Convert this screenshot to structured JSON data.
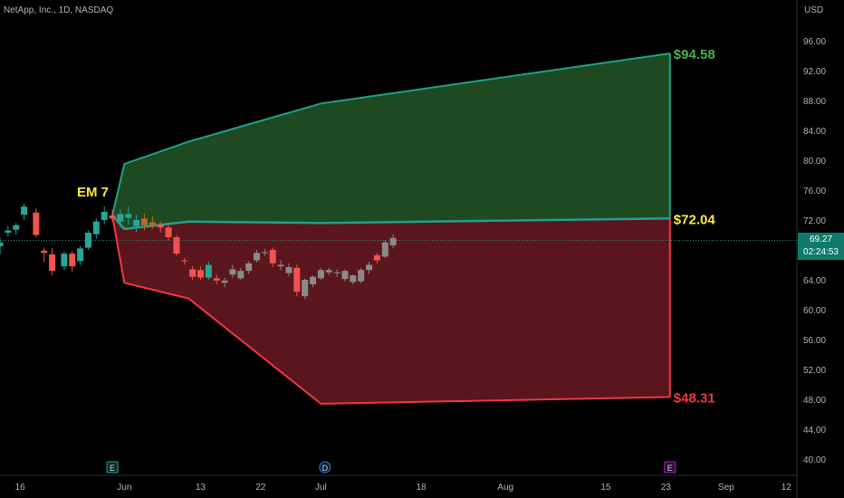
{
  "header": {
    "title": "NetApp, Inc., 1D, NASDAQ"
  },
  "currency": "USD",
  "price_tag": {
    "price": "69.27",
    "countdown": "02:24:53"
  },
  "colors": {
    "up": "#26a69a",
    "down": "#ef5350",
    "green_fill": "#1e4a22",
    "red_fill": "#5a161c",
    "upper_line": "#1fa08c",
    "lower_line": "#f23645",
    "mid_line": "#20a090",
    "label_green": "#4caf50",
    "label_yellow": "#ffeb3b",
    "label_red": "#f23645",
    "grey_candle": "#8a8a8a",
    "orange_candle": "#b8692e"
  },
  "icons": [
    "earnings-marker-icon",
    "dividend-marker-icon",
    "earnings-marker-icon"
  ],
  "chart_data": {
    "type": "candlestick",
    "y_axis": {
      "min": 38,
      "max": 99,
      "ticks": [
        "96.00",
        "92.00",
        "88.00",
        "84.00",
        "80.00",
        "76.00",
        "72.00",
        "68.00",
        "64.00",
        "60.00",
        "56.00",
        "52.00",
        "48.00",
        "44.00",
        "40.00"
      ]
    },
    "x_axis": {
      "tick_labels": [
        {
          "label": "16",
          "x": 5
        },
        {
          "label": "Jun",
          "x": 31
        },
        {
          "label": "13",
          "x": 50
        },
        {
          "label": "22",
          "x": 65
        },
        {
          "label": "Jul",
          "x": 80
        },
        {
          "label": "18",
          "x": 105
        },
        {
          "label": "Aug",
          "x": 126
        },
        {
          "label": "15",
          "x": 151
        },
        {
          "label": "23",
          "x": 166
        },
        {
          "label": "Sep",
          "x": 181
        },
        {
          "label": "12",
          "x": 196
        }
      ],
      "x_range": [
        0,
        200
      ]
    },
    "em_label": "EM 7",
    "range": {
      "upper": [
        [
          28,
          72.6
        ],
        [
          31,
          79.5
        ],
        [
          47,
          82.5
        ],
        [
          80,
          87.6
        ],
        [
          167,
          94.3
        ]
      ],
      "mid": [
        [
          28,
          72.6
        ],
        [
          31,
          70.8
        ],
        [
          47,
          71.8
        ],
        [
          80,
          71.6
        ],
        [
          167,
          72.2
        ]
      ],
      "lower": [
        [
          28,
          72.6
        ],
        [
          31,
          63.6
        ],
        [
          47,
          61.5
        ],
        [
          80,
          47.4
        ],
        [
          167,
          48.3
        ]
      ],
      "end_x": 167
    },
    "levels": [
      {
        "label": "$94.58",
        "value": 94.3,
        "color": "label_green"
      },
      {
        "label": "$72.04",
        "value": 72.2,
        "color": "label_yellow"
      },
      {
        "label": "$48.31",
        "value": 48.3,
        "color": "label_red"
      }
    ],
    "last_price": 69.27,
    "candles": [
      {
        "x": 0,
        "o": 68.5,
        "h": 69.6,
        "l": 67.4,
        "c": 69.0,
        "t": "up"
      },
      {
        "x": 2,
        "o": 70.3,
        "h": 71.2,
        "l": 69.8,
        "c": 70.6,
        "t": "up"
      },
      {
        "x": 4,
        "o": 70.7,
        "h": 71.6,
        "l": 70.0,
        "c": 71.3,
        "t": "up"
      },
      {
        "x": 6,
        "o": 72.7,
        "h": 74.2,
        "l": 72.0,
        "c": 73.8,
        "t": "up"
      },
      {
        "x": 9,
        "o": 73.0,
        "h": 73.6,
        "l": 69.7,
        "c": 70.0,
        "t": "down"
      },
      {
        "x": 11,
        "o": 67.9,
        "h": 68.3,
        "l": 66.4,
        "c": 67.6,
        "t": "down"
      },
      {
        "x": 13,
        "o": 67.4,
        "h": 68.2,
        "l": 64.6,
        "c": 65.2,
        "t": "down"
      },
      {
        "x": 16,
        "o": 65.8,
        "h": 67.8,
        "l": 65.3,
        "c": 67.5,
        "t": "up"
      },
      {
        "x": 18,
        "o": 67.5,
        "h": 67.8,
        "l": 65.0,
        "c": 65.8,
        "t": "down"
      },
      {
        "x": 20,
        "o": 66.5,
        "h": 68.5,
        "l": 66.0,
        "c": 68.2,
        "t": "up"
      },
      {
        "x": 22,
        "o": 68.3,
        "h": 70.6,
        "l": 68.0,
        "c": 70.3,
        "t": "up"
      },
      {
        "x": 24,
        "o": 70.1,
        "h": 72.2,
        "l": 69.5,
        "c": 71.8,
        "t": "up"
      },
      {
        "x": 26,
        "o": 72.0,
        "h": 73.8,
        "l": 71.4,
        "c": 73.1,
        "t": "up"
      },
      {
        "x": 28,
        "o": 72.6,
        "h": 73.4,
        "l": 71.8,
        "c": 72.2,
        "t": "down"
      },
      {
        "x": 30,
        "o": 71.8,
        "h": 73.4,
        "l": 71.0,
        "c": 72.8,
        "t": "up"
      },
      {
        "x": 32,
        "o": 72.3,
        "h": 73.8,
        "l": 71.4,
        "c": 72.8,
        "t": "up"
      },
      {
        "x": 34,
        "o": 71.2,
        "h": 72.7,
        "l": 70.4,
        "c": 72.0,
        "t": "up"
      },
      {
        "x": 36,
        "o": 72.2,
        "h": 72.8,
        "l": 70.6,
        "c": 71.3,
        "t": "orange"
      },
      {
        "x": 38,
        "o": 71.7,
        "h": 72.5,
        "l": 70.8,
        "c": 71.2,
        "t": "orange"
      },
      {
        "x": 40,
        "o": 71.4,
        "h": 71.8,
        "l": 70.3,
        "c": 71.0,
        "t": "down"
      },
      {
        "x": 42,
        "o": 71.0,
        "h": 71.4,
        "l": 69.3,
        "c": 69.7,
        "t": "down"
      },
      {
        "x": 44,
        "o": 69.7,
        "h": 70.0,
        "l": 67.2,
        "c": 67.5,
        "t": "down"
      },
      {
        "x": 46,
        "o": 66.6,
        "h": 66.9,
        "l": 66.0,
        "c": 66.5,
        "t": "down"
      },
      {
        "x": 48,
        "o": 65.4,
        "h": 65.8,
        "l": 64.0,
        "c": 64.4,
        "t": "down"
      },
      {
        "x": 50,
        "o": 65.3,
        "h": 65.8,
        "l": 64.0,
        "c": 64.3,
        "t": "down"
      },
      {
        "x": 52,
        "o": 64.3,
        "h": 66.4,
        "l": 64.0,
        "c": 66.0,
        "t": "up"
      },
      {
        "x": 54,
        "o": 64.2,
        "h": 64.7,
        "l": 63.4,
        "c": 63.9,
        "t": "down"
      },
      {
        "x": 56,
        "o": 63.6,
        "h": 64.3,
        "l": 63.0,
        "c": 63.9,
        "t": "grey"
      },
      {
        "x": 58,
        "o": 64.7,
        "h": 66.0,
        "l": 64.3,
        "c": 65.4,
        "t": "grey"
      },
      {
        "x": 60,
        "o": 64.2,
        "h": 65.6,
        "l": 64.0,
        "c": 65.2,
        "t": "grey"
      },
      {
        "x": 62,
        "o": 65.2,
        "h": 66.5,
        "l": 64.8,
        "c": 66.2,
        "t": "grey"
      },
      {
        "x": 64,
        "o": 66.6,
        "h": 68.0,
        "l": 66.3,
        "c": 67.6,
        "t": "grey"
      },
      {
        "x": 66,
        "o": 67.6,
        "h": 68.1,
        "l": 67.2,
        "c": 67.7,
        "t": "grey"
      },
      {
        "x": 68,
        "o": 68.0,
        "h": 68.3,
        "l": 65.7,
        "c": 66.2,
        "t": "down"
      },
      {
        "x": 70,
        "o": 66.0,
        "h": 66.6,
        "l": 65.3,
        "c": 65.8,
        "t": "grey"
      },
      {
        "x": 72,
        "o": 65.7,
        "h": 66.2,
        "l": 64.5,
        "c": 64.9,
        "t": "grey"
      },
      {
        "x": 74,
        "o": 65.6,
        "h": 66.0,
        "l": 61.8,
        "c": 62.4,
        "t": "down"
      },
      {
        "x": 76,
        "o": 61.8,
        "h": 64.2,
        "l": 61.4,
        "c": 64.0,
        "t": "grey"
      },
      {
        "x": 78,
        "o": 63.4,
        "h": 64.6,
        "l": 63.0,
        "c": 64.4,
        "t": "grey"
      },
      {
        "x": 80,
        "o": 64.2,
        "h": 65.6,
        "l": 64.0,
        "c": 65.3,
        "t": "grey"
      },
      {
        "x": 82,
        "o": 65.0,
        "h": 65.6,
        "l": 64.6,
        "c": 65.3,
        "t": "grey"
      },
      {
        "x": 84,
        "o": 64.9,
        "h": 65.4,
        "l": 64.4,
        "c": 65.0,
        "t": "grey"
      },
      {
        "x": 86,
        "o": 64.1,
        "h": 65.4,
        "l": 63.8,
        "c": 65.2,
        "t": "grey"
      },
      {
        "x": 88,
        "o": 63.7,
        "h": 64.7,
        "l": 63.4,
        "c": 64.6,
        "t": "grey"
      },
      {
        "x": 90,
        "o": 63.8,
        "h": 65.6,
        "l": 63.5,
        "c": 65.3,
        "t": "grey"
      },
      {
        "x": 92,
        "o": 65.3,
        "h": 66.4,
        "l": 64.8,
        "c": 66.0,
        "t": "grey"
      },
      {
        "x": 94,
        "o": 66.6,
        "h": 67.6,
        "l": 66.2,
        "c": 67.3,
        "t": "down"
      },
      {
        "x": 96,
        "o": 67.1,
        "h": 69.3,
        "l": 66.9,
        "c": 69.0,
        "t": "grey"
      },
      {
        "x": 98,
        "o": 68.6,
        "h": 70.1,
        "l": 68.2,
        "c": 69.6,
        "t": "grey"
      }
    ],
    "event_markers": [
      {
        "x": 28,
        "glyph": "E",
        "kind": "earnings-past"
      },
      {
        "x": 81,
        "glyph": "D",
        "kind": "dividend"
      },
      {
        "x": 167,
        "glyph": "E",
        "kind": "earnings-future"
      }
    ]
  }
}
